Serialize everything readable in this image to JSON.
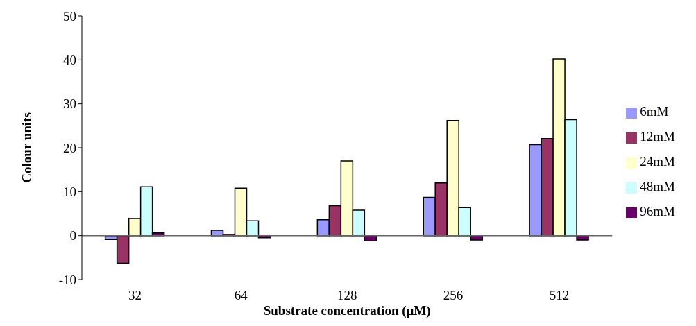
{
  "chart_data": {
    "type": "bar",
    "xlabel": "Substrate concentration (μM)",
    "ylabel": "Colour units",
    "categories": [
      "32",
      "64",
      "128",
      "256",
      "512"
    ],
    "series": [
      {
        "name": "6mM",
        "color": "#9999ff",
        "values": [
          -0.9,
          1.2,
          3.6,
          8.7,
          20.7
        ]
      },
      {
        "name": "12mM",
        "color": "#993366",
        "values": [
          -6.3,
          0.3,
          6.8,
          12,
          22.1
        ]
      },
      {
        "name": "24mM",
        "color": "#ffffcc",
        "values": [
          3.9,
          10.8,
          17,
          26.2,
          40.2
        ]
      },
      {
        "name": "48mM",
        "color": "#ccffff",
        "values": [
          11.1,
          3.4,
          5.8,
          6.4,
          26.4
        ]
      },
      {
        "name": "96mM",
        "color": "#660066",
        "values": [
          0.6,
          -0.5,
          -1.2,
          -1,
          -1
        ]
      }
    ],
    "ylim": [
      -10,
      50
    ],
    "yticks": [
      -10,
      0,
      10,
      20,
      30,
      40,
      50
    ],
    "legend": "right"
  }
}
